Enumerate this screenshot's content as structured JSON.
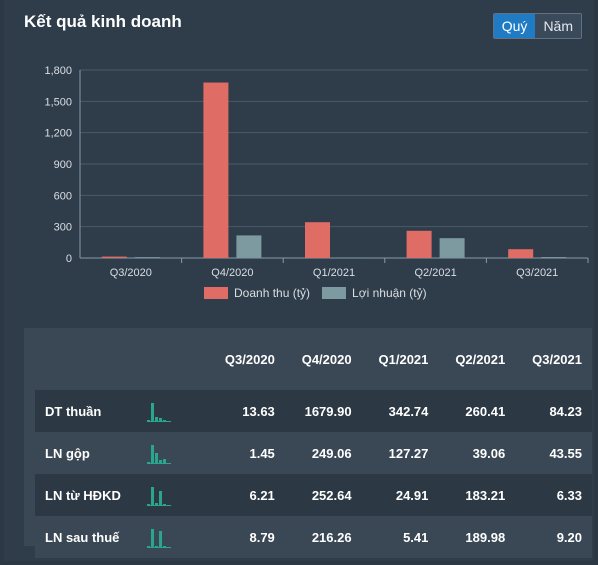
{
  "header": {
    "title": "Kết quả kinh doanh",
    "toggle": [
      {
        "label": "Quý",
        "active": true
      },
      {
        "label": "Năm",
        "active": false
      }
    ]
  },
  "colors": {
    "revenue": "#e06c66",
    "profit": "#7d9aa0",
    "spark": "#2aa68f",
    "accent": "#1f7cc4"
  },
  "chart_data": {
    "type": "bar",
    "categories": [
      "Q3/2020",
      "Q4/2020",
      "Q1/2021",
      "Q2/2021",
      "Q3/2021"
    ],
    "series": [
      {
        "name": "Doanh thu (tỷ)",
        "values": [
          13.63,
          1679.9,
          342.74,
          260.41,
          84.23
        ]
      },
      {
        "name": "Lợi nhuận (tỷ)",
        "values": [
          8.79,
          216.26,
          5.41,
          189.98,
          9.2
        ]
      }
    ],
    "yticks": [
      "0",
      "300",
      "600",
      "900",
      "1,200",
      "1,500",
      "1,800"
    ],
    "ylim": [
      0,
      1800
    ],
    "grid": true,
    "legend": "bottom"
  },
  "table": {
    "headers": [
      "Q3/2020",
      "Q4/2020",
      "Q1/2021",
      "Q2/2021",
      "Q3/2021"
    ],
    "rows": [
      {
        "label": "DT thuần",
        "values": [
          "13.63",
          "1679.90",
          "342.74",
          "260.41",
          "84.23"
        ]
      },
      {
        "label": "LN gộp",
        "values": [
          "1.45",
          "249.06",
          "127.27",
          "39.06",
          "43.55"
        ]
      },
      {
        "label": "LN từ HĐKD",
        "values": [
          "6.21",
          "252.64",
          "24.91",
          "183.21",
          "6.33"
        ]
      },
      {
        "label": "LN sau thuế",
        "values": [
          "8.79",
          "216.26",
          "5.41",
          "189.98",
          "9.20"
        ]
      }
    ]
  }
}
